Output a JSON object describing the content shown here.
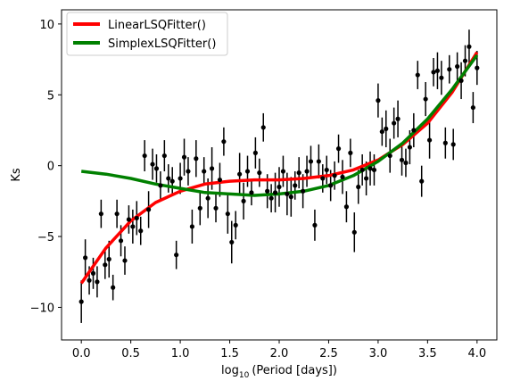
{
  "chart_data": {
    "type": "scatter",
    "xlabel_prefix": "log",
    "xlabel_sub": "10",
    "xlabel_suffix": "(Period [days])",
    "ylabel": "Ks",
    "xlim": [
      -0.2,
      4.2
    ],
    "ylim": [
      -12.3,
      11.0
    ],
    "xticks": [
      0.0,
      0.5,
      1.0,
      1.5,
      2.0,
      2.5,
      3.0,
      3.5,
      4.0
    ],
    "xtick_labels": [
      "0.0",
      "0.5",
      "1.0",
      "1.5",
      "2.0",
      "2.5",
      "3.0",
      "3.5",
      "4.0"
    ],
    "yticks": [
      -10,
      -5,
      0,
      5,
      10
    ],
    "ytick_labels": [
      "−10",
      "−5",
      "0",
      "5",
      "10"
    ],
    "grid": false,
    "legend_position": "top-left",
    "points": {
      "color": "#000000",
      "x": [
        0.0,
        0.04,
        0.08,
        0.12,
        0.16,
        0.2,
        0.24,
        0.28,
        0.32,
        0.36,
        0.4,
        0.44,
        0.48,
        0.52,
        0.56,
        0.6,
        0.64,
        0.68,
        0.72,
        0.76,
        0.8,
        0.84,
        0.88,
        0.92,
        0.96,
        1.0,
        1.04,
        1.08,
        1.12,
        1.16,
        1.2,
        1.24,
        1.28,
        1.32,
        1.36,
        1.4,
        1.44,
        1.48,
        1.52,
        1.56,
        1.6,
        1.64,
        1.68,
        1.72,
        1.76,
        1.8,
        1.84,
        1.88,
        1.92,
        1.96,
        2.0,
        2.04,
        2.08,
        2.12,
        2.16,
        2.2,
        2.24,
        2.28,
        2.32,
        2.36,
        2.4,
        2.44,
        2.48,
        2.52,
        2.56,
        2.6,
        2.64,
        2.68,
        2.72,
        2.76,
        2.8,
        2.84,
        2.88,
        2.92,
        2.96,
        3.0,
        3.04,
        3.08,
        3.12,
        3.16,
        3.2,
        3.24,
        3.28,
        3.32,
        3.36,
        3.4,
        3.44,
        3.48,
        3.52,
        3.56,
        3.6,
        3.64,
        3.68,
        3.72,
        3.76,
        3.8,
        3.84,
        3.88,
        3.92,
        3.96,
        4.0
      ],
      "y": [
        -9.6,
        -6.5,
        -8.1,
        -7.6,
        -8.2,
        -3.4,
        -7.0,
        -6.6,
        -8.6,
        -3.4,
        -5.3,
        -6.7,
        -3.8,
        -4.3,
        -3.7,
        -4.6,
        0.7,
        -3.1,
        0.1,
        -0.2,
        -1.4,
        0.7,
        -0.9,
        -1.1,
        -6.3,
        -0.9,
        0.6,
        -0.4,
        -4.3,
        0.5,
        -3.0,
        -0.4,
        -2.3,
        -0.2,
        -3.0,
        -1.0,
        1.7,
        -3.4,
        -5.4,
        -4.2,
        -0.6,
        -2.5,
        -0.4,
        -1.9,
        0.9,
        -0.5,
        2.7,
        -1.8,
        -2.3,
        -1.9,
        -1.5,
        -0.4,
        -2.0,
        -2.2,
        -1.4,
        -0.5,
        -1.8,
        -0.4,
        0.3,
        -4.2,
        0.3,
        -0.9,
        -0.3,
        -1.4,
        -0.7,
        1.2,
        -0.8,
        -2.9,
        0.9,
        -4.7,
        -1.5,
        -0.3,
        -0.9,
        -0.2,
        -0.3,
        4.6,
        2.4,
        2.6,
        0.7,
        3.0,
        3.3,
        0.4,
        0.2,
        1.3,
        2.5,
        6.4,
        -1.1,
        4.7,
        1.8,
        6.6,
        6.7,
        6.2,
        1.6,
        6.8,
        1.5,
        7.0,
        6.0,
        7.4,
        8.4,
        4.1,
        6.9
      ],
      "err": [
        1.5,
        1.3,
        1.0,
        1.1,
        1.1,
        1.0,
        1.0,
        1.3,
        0.9,
        1.0,
        1.1,
        1.0,
        1.0,
        1.2,
        1.2,
        1.0,
        1.1,
        1.3,
        1.1,
        1.0,
        1.0,
        1.1,
        1.0,
        1.0,
        1.0,
        1.1,
        1.3,
        1.0,
        1.2,
        1.3,
        1.2,
        1.0,
        1.4,
        1.5,
        1.0,
        1.2,
        1.0,
        1.4,
        1.5,
        1.0,
        1.5,
        1.3,
        1.1,
        0.9,
        1.1,
        1.0,
        1.0,
        1.2,
        1.0,
        1.4,
        1.4,
        1.1,
        1.5,
        1.4,
        1.0,
        1.1,
        1.2,
        1.1,
        1.1,
        1.1,
        1.2,
        1.0,
        1.0,
        1.1,
        1.0,
        1.0,
        1.2,
        1.1,
        1.0,
        1.4,
        1.2,
        1.1,
        1.2,
        1.2,
        1.1,
        1.2,
        1.0,
        1.3,
        1.2,
        1.1,
        1.3,
        1.1,
        1.0,
        1.2,
        1.2,
        1.0,
        1.1,
        1.2,
        1.3,
        1.0,
        1.3,
        1.2,
        1.1,
        1.0,
        1.1,
        1.0,
        1.3,
        1.1,
        1.2,
        1.1,
        1.2
      ]
    },
    "series": [
      {
        "name": "LinearLSQFitter()",
        "color": "#ff0000",
        "x": [
          0.0,
          0.25,
          0.5,
          0.75,
          1.0,
          1.25,
          1.5,
          1.75,
          2.0,
          2.25,
          2.5,
          2.75,
          3.0,
          3.25,
          3.5,
          3.75,
          4.0
        ],
        "y": [
          -8.3,
          -5.8,
          -3.9,
          -2.6,
          -1.8,
          -1.3,
          -1.1,
          -1.0,
          -1.0,
          -0.9,
          -0.7,
          -0.3,
          0.4,
          1.5,
          3.0,
          5.2,
          8.0
        ]
      },
      {
        "name": "SimplexLSQFitter()",
        "color": "#008000",
        "x": [
          0.0,
          0.25,
          0.5,
          0.75,
          1.0,
          1.25,
          1.5,
          1.75,
          2.0,
          2.25,
          2.5,
          2.75,
          3.0,
          3.25,
          3.5,
          3.75,
          4.0
        ],
        "y": [
          -0.4,
          -0.6,
          -0.9,
          -1.3,
          -1.6,
          -1.9,
          -2.0,
          -2.1,
          -2.0,
          -1.8,
          -1.4,
          -0.7,
          0.3,
          1.6,
          3.3,
          5.4,
          7.8
        ]
      }
    ]
  }
}
